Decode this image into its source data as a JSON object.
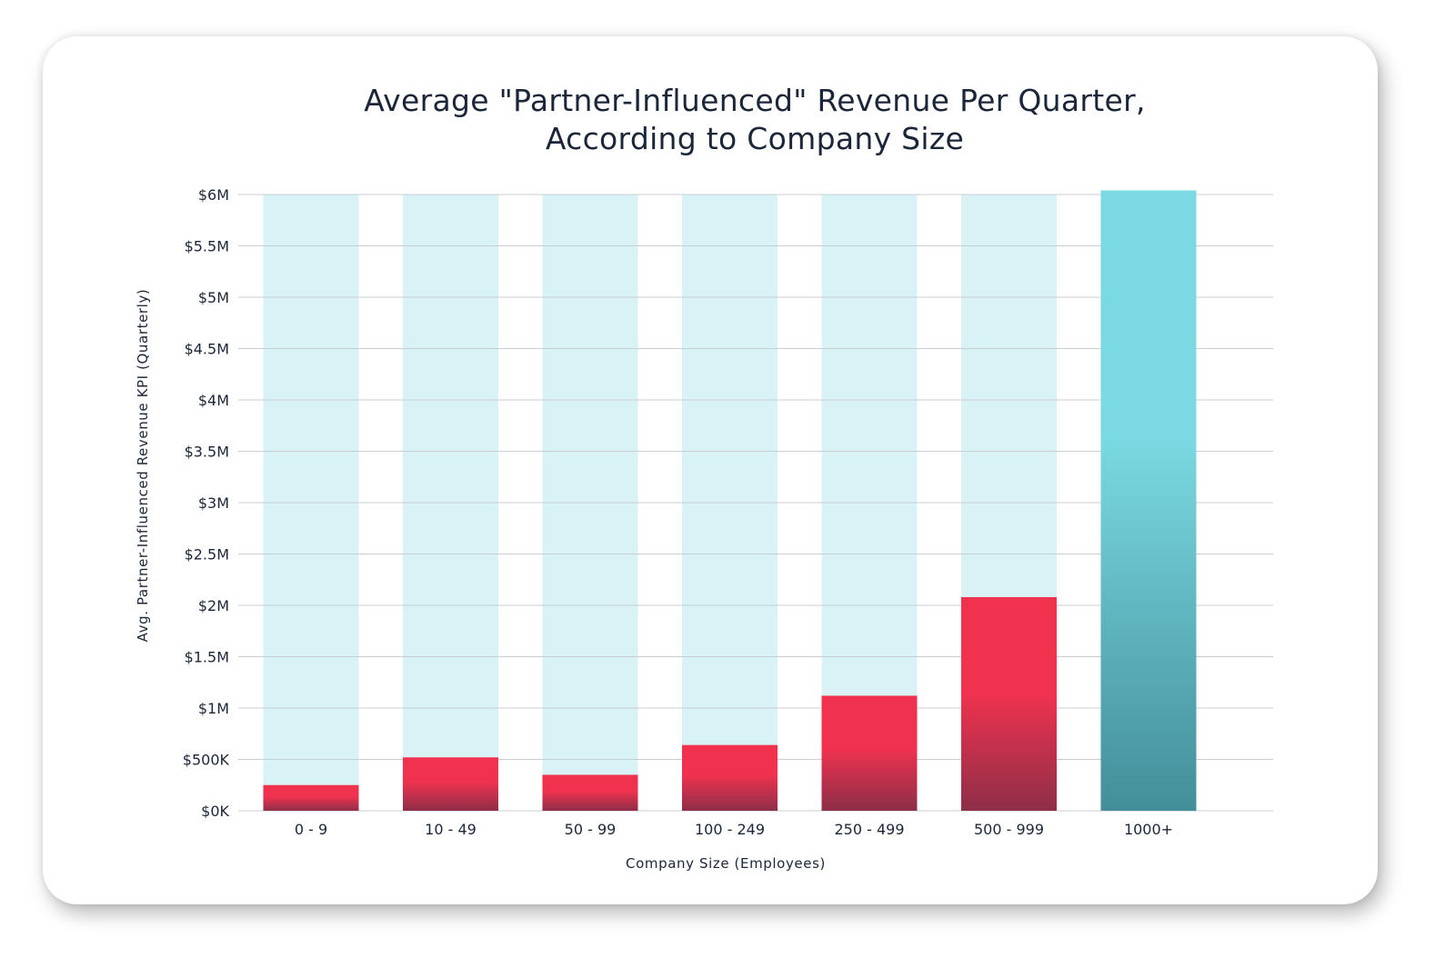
{
  "chart_data": {
    "type": "bar",
    "title_line1": "Average \"Partner-Influenced\" Revenue Per Quarter,",
    "title_line2": "According to Company Size",
    "xlabel": "Company Size (Employees)",
    "ylabel": "Avg. Partner-Influenced Revenue KPI (Quarterly)",
    "ylim": [
      0,
      6000000
    ],
    "yticks": [
      0,
      500000,
      1000000,
      1500000,
      2000000,
      2500000,
      3000000,
      3500000,
      4000000,
      4500000,
      5000000,
      5500000,
      6000000
    ],
    "ytick_labels": [
      "$0K",
      "$500K",
      "$1M",
      "$1.5M",
      "$2M",
      "$2.5M",
      "$3M",
      "$3.5M",
      "$4M",
      "$4.5M",
      "$5M",
      "$5.5M",
      "$6M"
    ],
    "categories": [
      "0 - 9",
      "10 - 49",
      "50 - 99",
      "100 - 249",
      "250 - 499",
      "500 - 999",
      "1000+"
    ],
    "values": [
      250000,
      520000,
      350000,
      640000,
      1120000,
      2080000,
      6040000
    ],
    "grid": true,
    "colors": {
      "bar_top": "#f0324f",
      "bar_bottom": "#8e2e48",
      "highlight_top": "#7ad9e2",
      "highlight_bottom": "#438e99",
      "background_band": "#d9f2f5",
      "gridline": "#c8cdd2",
      "text": "#1b2638"
    }
  }
}
